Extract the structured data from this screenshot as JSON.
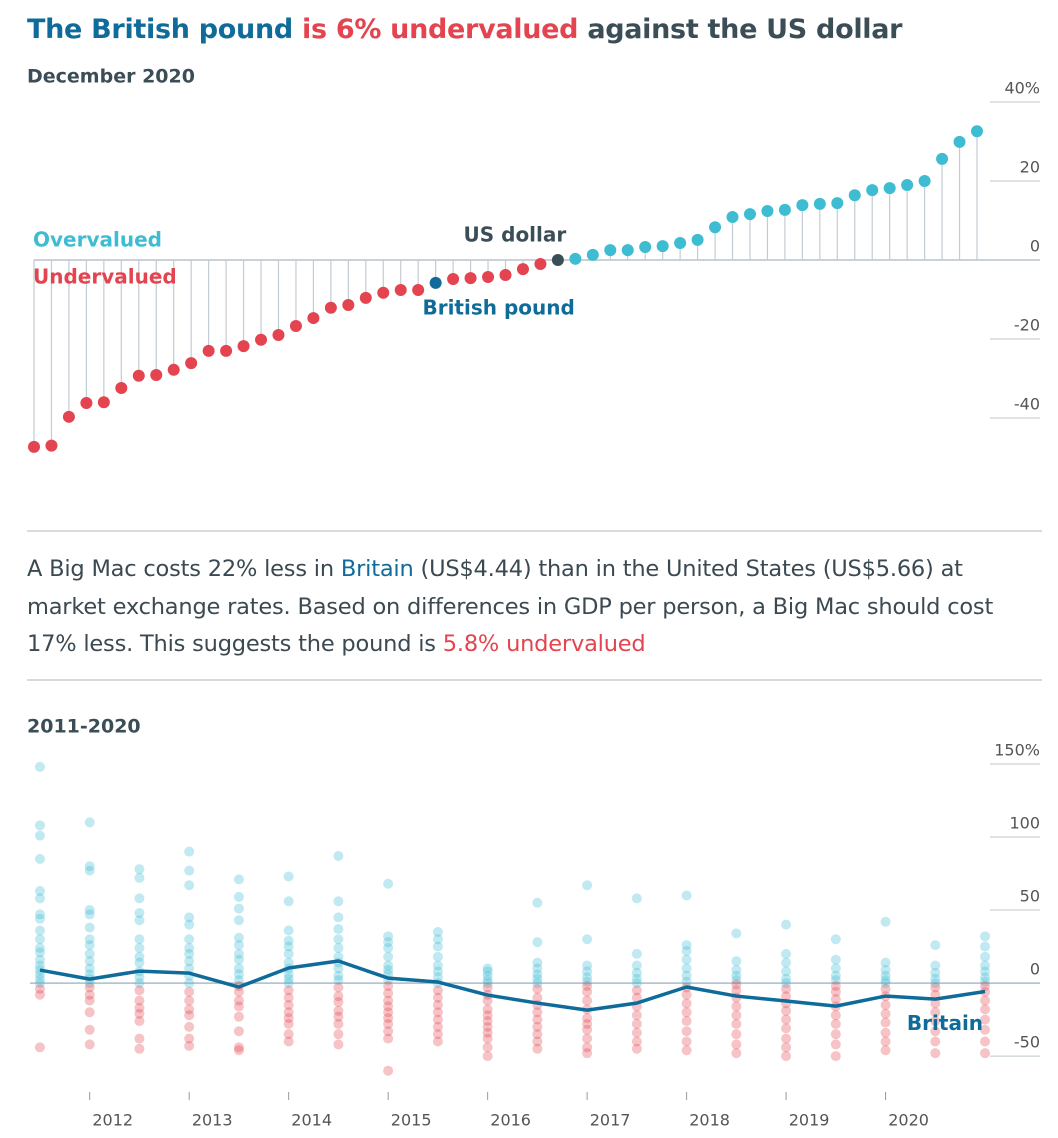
{
  "chart_data": [
    {
      "type": "lollipop",
      "title": [
        {
          "text": "The British pound",
          "color": "#0f6b99"
        },
        {
          "text": " is 6% undervalued",
          "color": "#e3444f"
        },
        {
          "text": " against the US dollar",
          "color": "#3b4d57"
        }
      ],
      "subtitle": "December 2020",
      "categories": [
        null,
        null,
        null,
        null,
        null,
        null,
        null,
        null,
        null,
        null,
        null,
        null,
        null,
        null,
        null,
        null,
        null,
        null,
        null,
        null,
        null,
        null,
        null,
        "British pound",
        null,
        null,
        null,
        null,
        null,
        null,
        "US dollar",
        null,
        null,
        null,
        null,
        null,
        null,
        null,
        null,
        null,
        null,
        null,
        null,
        null,
        null,
        null,
        null,
        null,
        null,
        null,
        null,
        null,
        null,
        null,
        null
      ],
      "values": [
        -47.3,
        -47,
        -39.7,
        -36.2,
        -36,
        -32.4,
        -29.3,
        -29.1,
        -27.8,
        -26.1,
        -23,
        -23,
        -21.8,
        -20.2,
        -19,
        -16.7,
        -14.7,
        -12.1,
        -11.4,
        -9.6,
        -8.3,
        -7.6,
        -7.6,
        -5.8,
        -4.8,
        -4.6,
        -4.3,
        -3.8,
        -2.3,
        -1,
        0,
        0.3,
        1.3,
        2.5,
        2.5,
        3.3,
        3.5,
        4.3,
        5.1,
        8.3,
        10.9,
        11.6,
        12.4,
        12.7,
        13.9,
        14.2,
        14.4,
        16.4,
        17.7,
        18.2,
        19,
        20,
        25.6,
        29.9,
        32.6
      ],
      "positive_color": "#3ebcd2",
      "negative_color": "#e3444f",
      "highlight_colors": {
        "British pound": "#0f6b99",
        "US dollar": "#3b4d57"
      },
      "positive_label": "Overvalued",
      "negative_label": "Undervalued",
      "ylim": [
        -50,
        40
      ],
      "yticks": [
        {
          "value": 40,
          "label": "40%"
        },
        20,
        0,
        -20,
        -40
      ]
    },
    {
      "type": "scatter",
      "title": "2011-2020",
      "x": [
        2011.5,
        2012,
        2012.5,
        2013,
        2013.5,
        2014,
        2014.5,
        2015,
        2015.5,
        2016,
        2016.5,
        2017,
        2017.5,
        2018,
        2018.5,
        2019,
        2019.5,
        2020,
        2020.5,
        2021
      ],
      "xlim": [
        2011.4,
        2021.1
      ],
      "xticks": [
        2012,
        2013,
        2014,
        2015,
        2016,
        2017,
        2018,
        2019,
        2020
      ],
      "points": [
        [
          148,
          108,
          101,
          85,
          63,
          58,
          47,
          44,
          36,
          30,
          24,
          21,
          16,
          12,
          9,
          6,
          3,
          0,
          -4,
          -8,
          -44
        ],
        [
          110,
          80,
          77,
          50,
          47,
          38,
          30,
          26,
          20,
          15,
          10,
          6,
          3,
          0,
          -3,
          -8,
          -12,
          -20,
          -32,
          -42
        ],
        [
          78,
          72,
          58,
          48,
          43,
          30,
          24,
          18,
          14,
          8,
          4,
          0,
          -5,
          -12,
          -17,
          -21,
          -26,
          -38,
          -45
        ],
        [
          90,
          77,
          67,
          45,
          40,
          30,
          24,
          20,
          15,
          10,
          5,
          0,
          -6,
          -12,
          -18,
          -22,
          -30,
          -38,
          -43
        ],
        [
          71,
          59,
          51,
          43,
          31,
          26,
          20,
          16,
          10,
          6,
          2,
          -2,
          -6,
          -12,
          -16,
          -23,
          -33,
          -44,
          -46
        ],
        [
          73,
          56,
          36,
          29,
          25,
          20,
          14,
          10,
          6,
          3,
          0,
          -5,
          -10,
          -15,
          -20,
          -24,
          -28,
          -35,
          -40
        ],
        [
          87,
          56,
          45,
          37,
          30,
          24,
          18,
          14,
          10,
          5,
          2,
          -3,
          -9,
          -13,
          -19,
          -23,
          -28,
          -35,
          -42
        ],
        [
          68,
          32,
          28,
          24,
          18,
          12,
          9,
          6,
          2,
          -2,
          -7,
          -12,
          -16,
          -20,
          -24,
          -28,
          -33,
          -38,
          -60
        ],
        [
          35,
          30,
          25,
          18,
          12,
          8,
          4,
          0,
          -5,
          -10,
          -15,
          -20,
          -25,
          -30,
          -35,
          -40
        ],
        [
          10,
          8,
          5,
          2,
          0,
          -3,
          -8,
          -12,
          -18,
          -22,
          -26,
          -30,
          -34,
          -38,
          -44,
          -50
        ],
        [
          55,
          28,
          14,
          10,
          6,
          3,
          0,
          -4,
          -10,
          -15,
          -20,
          -25,
          -30,
          -35,
          -40,
          -45
        ],
        [
          67,
          30,
          12,
          8,
          4,
          1,
          -2,
          -6,
          -12,
          -18,
          -24,
          -28,
          -32,
          -38,
          -44,
          -48
        ],
        [
          58,
          20,
          12,
          7,
          3,
          0,
          -5,
          -10,
          -16,
          -22,
          -28,
          -34,
          -40,
          -45
        ],
        [
          60,
          26,
          22,
          16,
          10,
          5,
          1,
          -3,
          -8,
          -14,
          -20,
          -26,
          -33,
          -40,
          -46
        ],
        [
          34,
          15,
          9,
          5,
          2,
          -1,
          -5,
          -10,
          -16,
          -22,
          -28,
          -35,
          -42,
          -48
        ],
        [
          40,
          20,
          14,
          8,
          3,
          0,
          -4,
          -9,
          -14,
          -19,
          -25,
          -31,
          -38,
          -44,
          -50
        ],
        [
          30,
          16,
          10,
          5,
          2,
          -2,
          -6,
          -11,
          -16,
          -22,
          -28,
          -35,
          -42,
          -50
        ],
        [
          42,
          14,
          9,
          5,
          2,
          0,
          -4,
          -9,
          -15,
          -21,
          -27,
          -34,
          -40,
          -46
        ],
        [
          26,
          12,
          7,
          3,
          0,
          -3,
          -8,
          -14,
          -20,
          -26,
          -33,
          -40,
          -48
        ],
        [
          32,
          25,
          18,
          12,
          8,
          4,
          1,
          -2,
          -6,
          -12,
          -18,
          -25,
          -32,
          -40,
          -48
        ]
      ],
      "positive_color": "#3ebcd2",
      "negative_color": "#e3444f",
      "series": [
        {
          "name": "Britain",
          "color": "#0f6b99",
          "values": [
            8.9,
            2.7,
            8.2,
            6.8,
            -2.7,
            10.3,
            15.1,
            3.4,
            0.7,
            -8.2,
            -13.7,
            -18.5,
            -13.7,
            -2.7,
            -8.9,
            -12.3,
            -15.8,
            -8.9,
            -11,
            -5.8
          ]
        }
      ],
      "ylim": [
        -65,
        150
      ],
      "yticks": [
        {
          "value": 150,
          "label": "150%"
        },
        100,
        50,
        0,
        -50
      ]
    }
  ],
  "description": [
    {
      "text": "A Big Mac costs 22% less in ",
      "color": "#3b4a52"
    },
    {
      "text": "Britain",
      "color": "#0f6b99"
    },
    {
      "text": " (US$4.44) than in the United States (US$5.66) at market exchange rates. Based on differences in GDP per person, a Big Mac should cost 17% less. This suggests the pound is ",
      "color": "#3b4a52"
    },
    {
      "text": "5.8% undervalued",
      "color": "#e3444f"
    }
  ]
}
